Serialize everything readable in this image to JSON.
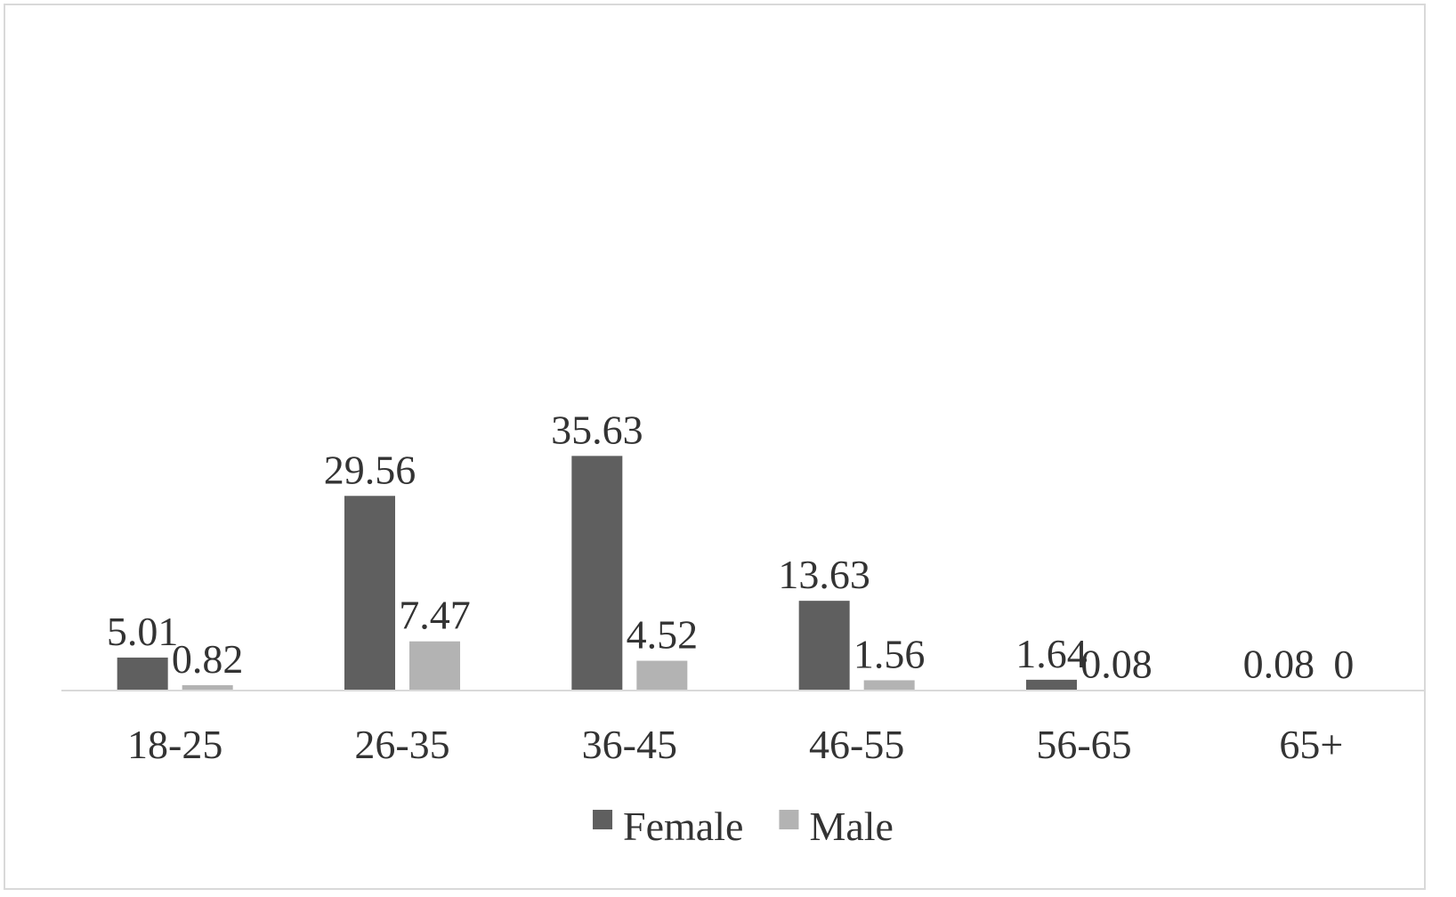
{
  "chart_data": {
    "type": "bar",
    "categories": [
      "18-25",
      "26-35",
      "36-45",
      "46-55",
      "56-65",
      "65+"
    ],
    "series": [
      {
        "name": "Female",
        "values": [
          5.01,
          29.56,
          35.63,
          13.63,
          1.64,
          0.08
        ],
        "labels": [
          "5.01",
          "29.56",
          "35.63",
          "13.63",
          "1.64",
          "0.08"
        ],
        "color": "#5f5f5f"
      },
      {
        "name": "Male",
        "values": [
          0.82,
          7.47,
          4.52,
          1.56,
          0.08,
          0
        ],
        "labels": [
          "0.82",
          "7.47",
          "4.52",
          "1.56",
          "0.08",
          "0"
        ],
        "color": "#b3b3b3"
      }
    ],
    "ylim": [
      0,
      100
    ],
    "grid": false,
    "legend_position": "bottom",
    "axis_color": "#d9d9d9"
  }
}
